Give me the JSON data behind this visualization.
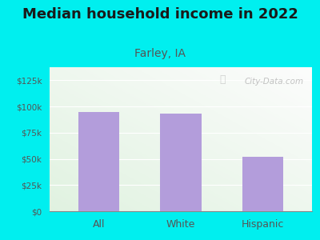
{
  "title": "Median household income in 2022",
  "subtitle": "Farley, IA",
  "categories": [
    "All",
    "White",
    "Hispanic"
  ],
  "values": [
    95000,
    93000,
    52000
  ],
  "bar_color": "#b39ddb",
  "title_fontsize": 13,
  "subtitle_fontsize": 10,
  "subtitle_color": "#555555",
  "title_color": "#1a1a1a",
  "tick_label_color": "#555555",
  "background_outer": "#00efef",
  "ylim": [
    0,
    137500
  ],
  "yticks": [
    0,
    25000,
    50000,
    75000,
    100000,
    125000
  ],
  "ytick_labels": [
    "$0",
    "$25k",
    "$50k",
    "$75k",
    "$100k",
    "$125k"
  ],
  "watermark": "City-Data.com"
}
